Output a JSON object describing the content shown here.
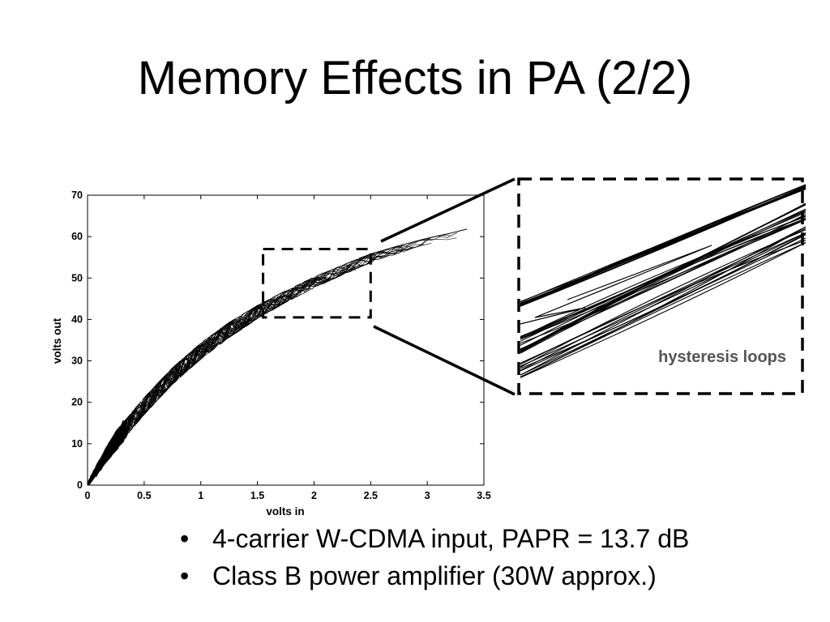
{
  "slide": {
    "title": "Memory Effects in PA (2/2)"
  },
  "bullets": [
    {
      "text": "4-carrier W-CDMA input, PAPR = 13.7 dB"
    },
    {
      "text": "Class B power amplifier (30W approx.)"
    }
  ],
  "chart_data": {
    "type": "line",
    "xlabel": "volts in",
    "ylabel": "volts out",
    "xlim": [
      0,
      3.5
    ],
    "ylim": [
      0,
      70
    ],
    "xticks": [
      0,
      0.5,
      1,
      1.5,
      2,
      2.5,
      3,
      3.5
    ],
    "xtick_labels": [
      "0",
      "0.5",
      "1",
      "1.5",
      "2",
      "2.5",
      "3",
      "3.5"
    ],
    "yticks": [
      0,
      10,
      20,
      30,
      40,
      50,
      60,
      70
    ],
    "ytick_labels": [
      "0",
      "10",
      "20",
      "30",
      "40",
      "50",
      "60",
      "70"
    ],
    "grid": false,
    "series": [
      {
        "x": [
          0.0,
          0.1,
          0.2,
          0.3,
          0.5,
          0.75,
          1.0,
          1.25,
          1.5,
          1.75,
          2.0,
          2.25,
          2.5,
          2.75,
          3.0,
          3.2,
          3.35
        ],
        "values": [
          0,
          5.8,
          10.6,
          14.6,
          21.2,
          28.4,
          34.3,
          39.3,
          43.4,
          47.0,
          50.3,
          53.2,
          55.8,
          57.8,
          59.6,
          60.8,
          61.8
        ]
      },
      {
        "x": [
          0.0,
          0.1,
          0.2,
          0.3,
          0.5,
          0.75,
          1.0,
          1.25,
          1.5,
          1.75,
          2.0,
          2.25,
          2.5,
          2.75,
          3.0
        ],
        "values": [
          0,
          3.4,
          7.0,
          10.4,
          17.0,
          24.3,
          30.4,
          35.6,
          40.1,
          44.1,
          47.6,
          50.7,
          53.6,
          56.0,
          58.2
        ]
      }
    ],
    "zoom_region": {
      "x": [
        1.55,
        2.5
      ],
      "y": [
        40.5,
        57
      ]
    },
    "annotations": [
      {
        "text": "hysteresis loops"
      }
    ]
  }
}
